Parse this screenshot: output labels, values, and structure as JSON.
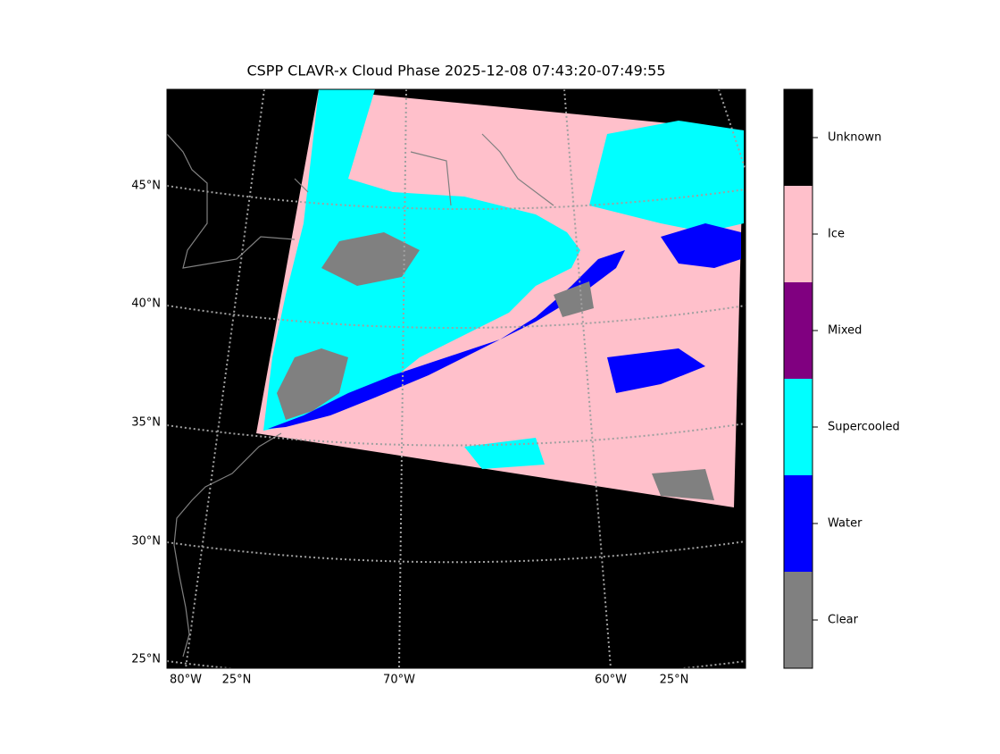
{
  "title": "CSPP CLAVR-x Cloud Phase 2025-12-08 07:43:20-07:49:55",
  "lat_labels": [
    "45°N",
    "40°N",
    "35°N",
    "30°N",
    "25°N"
  ],
  "lon_labels": [
    "80°W",
    "25°N",
    "70°W",
    "60°W",
    "25°N"
  ],
  "colorbar": {
    "classes": [
      {
        "label": "Unknown",
        "color": "#000000"
      },
      {
        "label": "Ice",
        "color": "#ffc0cb"
      },
      {
        "label": "Mixed",
        "color": "#800080"
      },
      {
        "label": "Supercooled",
        "color": "#00ffff"
      },
      {
        "label": "Water",
        "color": "#0000ff"
      },
      {
        "label": "Clear",
        "color": "#808080"
      }
    ]
  }
}
